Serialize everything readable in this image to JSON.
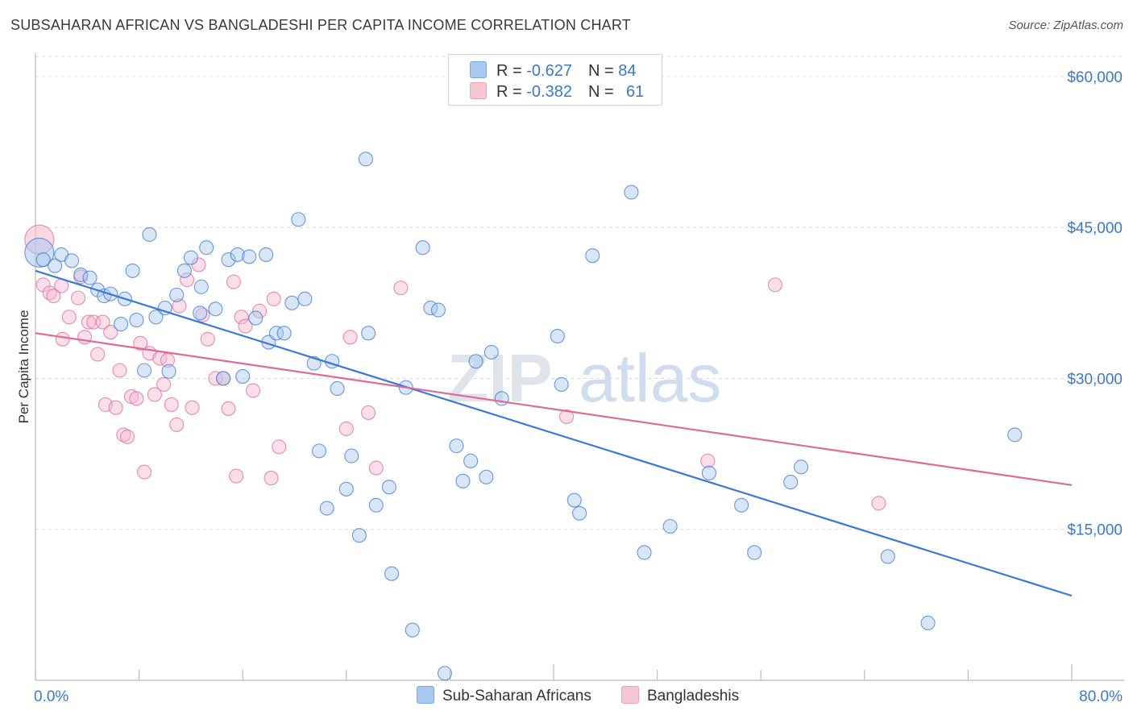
{
  "header": {
    "title": "SUBSAHARAN AFRICAN VS BANGLADESHI PER CAPITA INCOME CORRELATION CHART",
    "source": "Source: ZipAtlas.com"
  },
  "watermark": {
    "zip": "ZIP",
    "atlas": "atlas"
  },
  "legend": {
    "series1": {
      "r_label": "R = ",
      "r_value": "-0.627",
      "n_label": "N = ",
      "n_value": "84",
      "color": "#a9c8f0"
    },
    "series2": {
      "r_label": "R = ",
      "r_value": "-0.382",
      "n_label": "N = ",
      "n_value": "61",
      "color": "#f6b8cb"
    }
  },
  "bottom_legend": {
    "series1": "Sub-Saharan Africans",
    "series2": "Bangladeshis"
  },
  "chart_data": {
    "type": "scatter",
    "ylabel": "Per Capita Income",
    "xlim": [
      0,
      80
    ],
    "ylim": [
      0,
      62000
    ],
    "x_tick_labels": [
      "0.0%",
      "80.0%"
    ],
    "y_ticks": [
      15000,
      30000,
      45000,
      60000
    ],
    "y_tick_labels": [
      "$15,000",
      "$30,000",
      "$45,000",
      "$60,000"
    ],
    "grid": true,
    "series": [
      {
        "name": "Sub-Saharan Africans",
        "color": "#3b78d6",
        "fill": "#a9c8f0",
        "trend": [
          [
            0,
            40700
          ],
          [
            80,
            8400
          ]
        ],
        "points": [
          [
            0.3,
            42500
          ],
          [
            0.6,
            41800
          ],
          [
            1.5,
            41200
          ],
          [
            2.0,
            42300
          ],
          [
            2.8,
            41700
          ],
          [
            3.5,
            40300
          ],
          [
            4.2,
            40000
          ],
          [
            4.8,
            38800
          ],
          [
            5.3,
            38200
          ],
          [
            5.8,
            38400
          ],
          [
            6.6,
            35400
          ],
          [
            6.9,
            37900
          ],
          [
            7.5,
            40700
          ],
          [
            7.8,
            35800
          ],
          [
            8.4,
            30800
          ],
          [
            8.8,
            44300
          ],
          [
            9.3,
            36100
          ],
          [
            10.0,
            37000
          ],
          [
            10.3,
            30700
          ],
          [
            10.9,
            38300
          ],
          [
            11.5,
            40700
          ],
          [
            12.0,
            42000
          ],
          [
            12.7,
            36500
          ],
          [
            12.8,
            39100
          ],
          [
            13.2,
            43000
          ],
          [
            13.9,
            36900
          ],
          [
            14.5,
            30000
          ],
          [
            14.9,
            41800
          ],
          [
            15.6,
            42300
          ],
          [
            16.0,
            30200
          ],
          [
            16.5,
            42100
          ],
          [
            17.0,
            36000
          ],
          [
            17.8,
            42300
          ],
          [
            18.0,
            33600
          ],
          [
            18.6,
            34500
          ],
          [
            19.2,
            34500
          ],
          [
            19.8,
            37500
          ],
          [
            20.3,
            45800
          ],
          [
            20.8,
            37900
          ],
          [
            21.5,
            31500
          ],
          [
            21.9,
            22800
          ],
          [
            22.5,
            17100
          ],
          [
            22.9,
            31700
          ],
          [
            23.3,
            29000
          ],
          [
            24.0,
            19000
          ],
          [
            24.4,
            22300
          ],
          [
            25.0,
            14400
          ],
          [
            25.5,
            51800
          ],
          [
            25.7,
            34500
          ],
          [
            26.3,
            17400
          ],
          [
            27.3,
            19200
          ],
          [
            27.5,
            10600
          ],
          [
            28.6,
            29100
          ],
          [
            29.1,
            5000
          ],
          [
            29.9,
            43000
          ],
          [
            30.5,
            37000
          ],
          [
            31.1,
            36800
          ],
          [
            31.6,
            700
          ],
          [
            32.5,
            23300
          ],
          [
            33.0,
            19800
          ],
          [
            33.6,
            21800
          ],
          [
            34.0,
            31700
          ],
          [
            34.8,
            20200
          ],
          [
            35.2,
            32600
          ],
          [
            36.0,
            28000
          ],
          [
            40.3,
            34200
          ],
          [
            40.6,
            29400
          ],
          [
            41.6,
            17900
          ],
          [
            42.0,
            16600
          ],
          [
            43.0,
            42200
          ],
          [
            46.0,
            48500
          ],
          [
            47.0,
            12700
          ],
          [
            49.0,
            15300
          ],
          [
            52.0,
            20600
          ],
          [
            54.5,
            17400
          ],
          [
            55.5,
            12700
          ],
          [
            58.3,
            19700
          ],
          [
            59.1,
            21200
          ],
          [
            65.8,
            12300
          ],
          [
            68.9,
            5700
          ],
          [
            75.6,
            24400
          ]
        ]
      },
      {
        "name": "Bangladeshis",
        "color": "#e0699a",
        "fill": "#f6b8cb",
        "trend": [
          [
            0,
            34500
          ],
          [
            80,
            19400
          ]
        ],
        "points": [
          [
            0.3,
            43800
          ],
          [
            0.6,
            39300
          ],
          [
            1.1,
            38500
          ],
          [
            1.4,
            38200
          ],
          [
            2.0,
            39200
          ],
          [
            2.1,
            33900
          ],
          [
            2.6,
            36100
          ],
          [
            3.3,
            38000
          ],
          [
            3.5,
            40100
          ],
          [
            3.8,
            34100
          ],
          [
            4.1,
            35600
          ],
          [
            4.5,
            35600
          ],
          [
            4.8,
            32400
          ],
          [
            5.2,
            35600
          ],
          [
            5.4,
            27400
          ],
          [
            5.8,
            34600
          ],
          [
            6.2,
            27100
          ],
          [
            6.5,
            30800
          ],
          [
            6.8,
            24400
          ],
          [
            7.1,
            24200
          ],
          [
            7.4,
            28200
          ],
          [
            7.8,
            28000
          ],
          [
            8.1,
            33500
          ],
          [
            8.4,
            20700
          ],
          [
            8.8,
            32500
          ],
          [
            9.2,
            28400
          ],
          [
            9.6,
            32000
          ],
          [
            9.9,
            29400
          ],
          [
            10.2,
            31800
          ],
          [
            10.5,
            27400
          ],
          [
            10.9,
            25400
          ],
          [
            11.1,
            37200
          ],
          [
            11.7,
            39800
          ],
          [
            12.1,
            27100
          ],
          [
            12.6,
            41300
          ],
          [
            12.9,
            36300
          ],
          [
            13.3,
            33900
          ],
          [
            13.9,
            30000
          ],
          [
            14.5,
            30000
          ],
          [
            14.9,
            27000
          ],
          [
            15.3,
            39600
          ],
          [
            15.5,
            20300
          ],
          [
            15.9,
            36100
          ],
          [
            16.2,
            35200
          ],
          [
            16.8,
            28800
          ],
          [
            17.3,
            36700
          ],
          [
            18.2,
            20100
          ],
          [
            18.4,
            37900
          ],
          [
            18.8,
            23200
          ],
          [
            24.0,
            25000
          ],
          [
            24.3,
            34100
          ],
          [
            25.7,
            26600
          ],
          [
            26.3,
            21100
          ],
          [
            28.2,
            39000
          ],
          [
            41.0,
            26200
          ],
          [
            51.9,
            21800
          ],
          [
            57.1,
            39300
          ],
          [
            65.1,
            17600
          ]
        ]
      }
    ]
  }
}
